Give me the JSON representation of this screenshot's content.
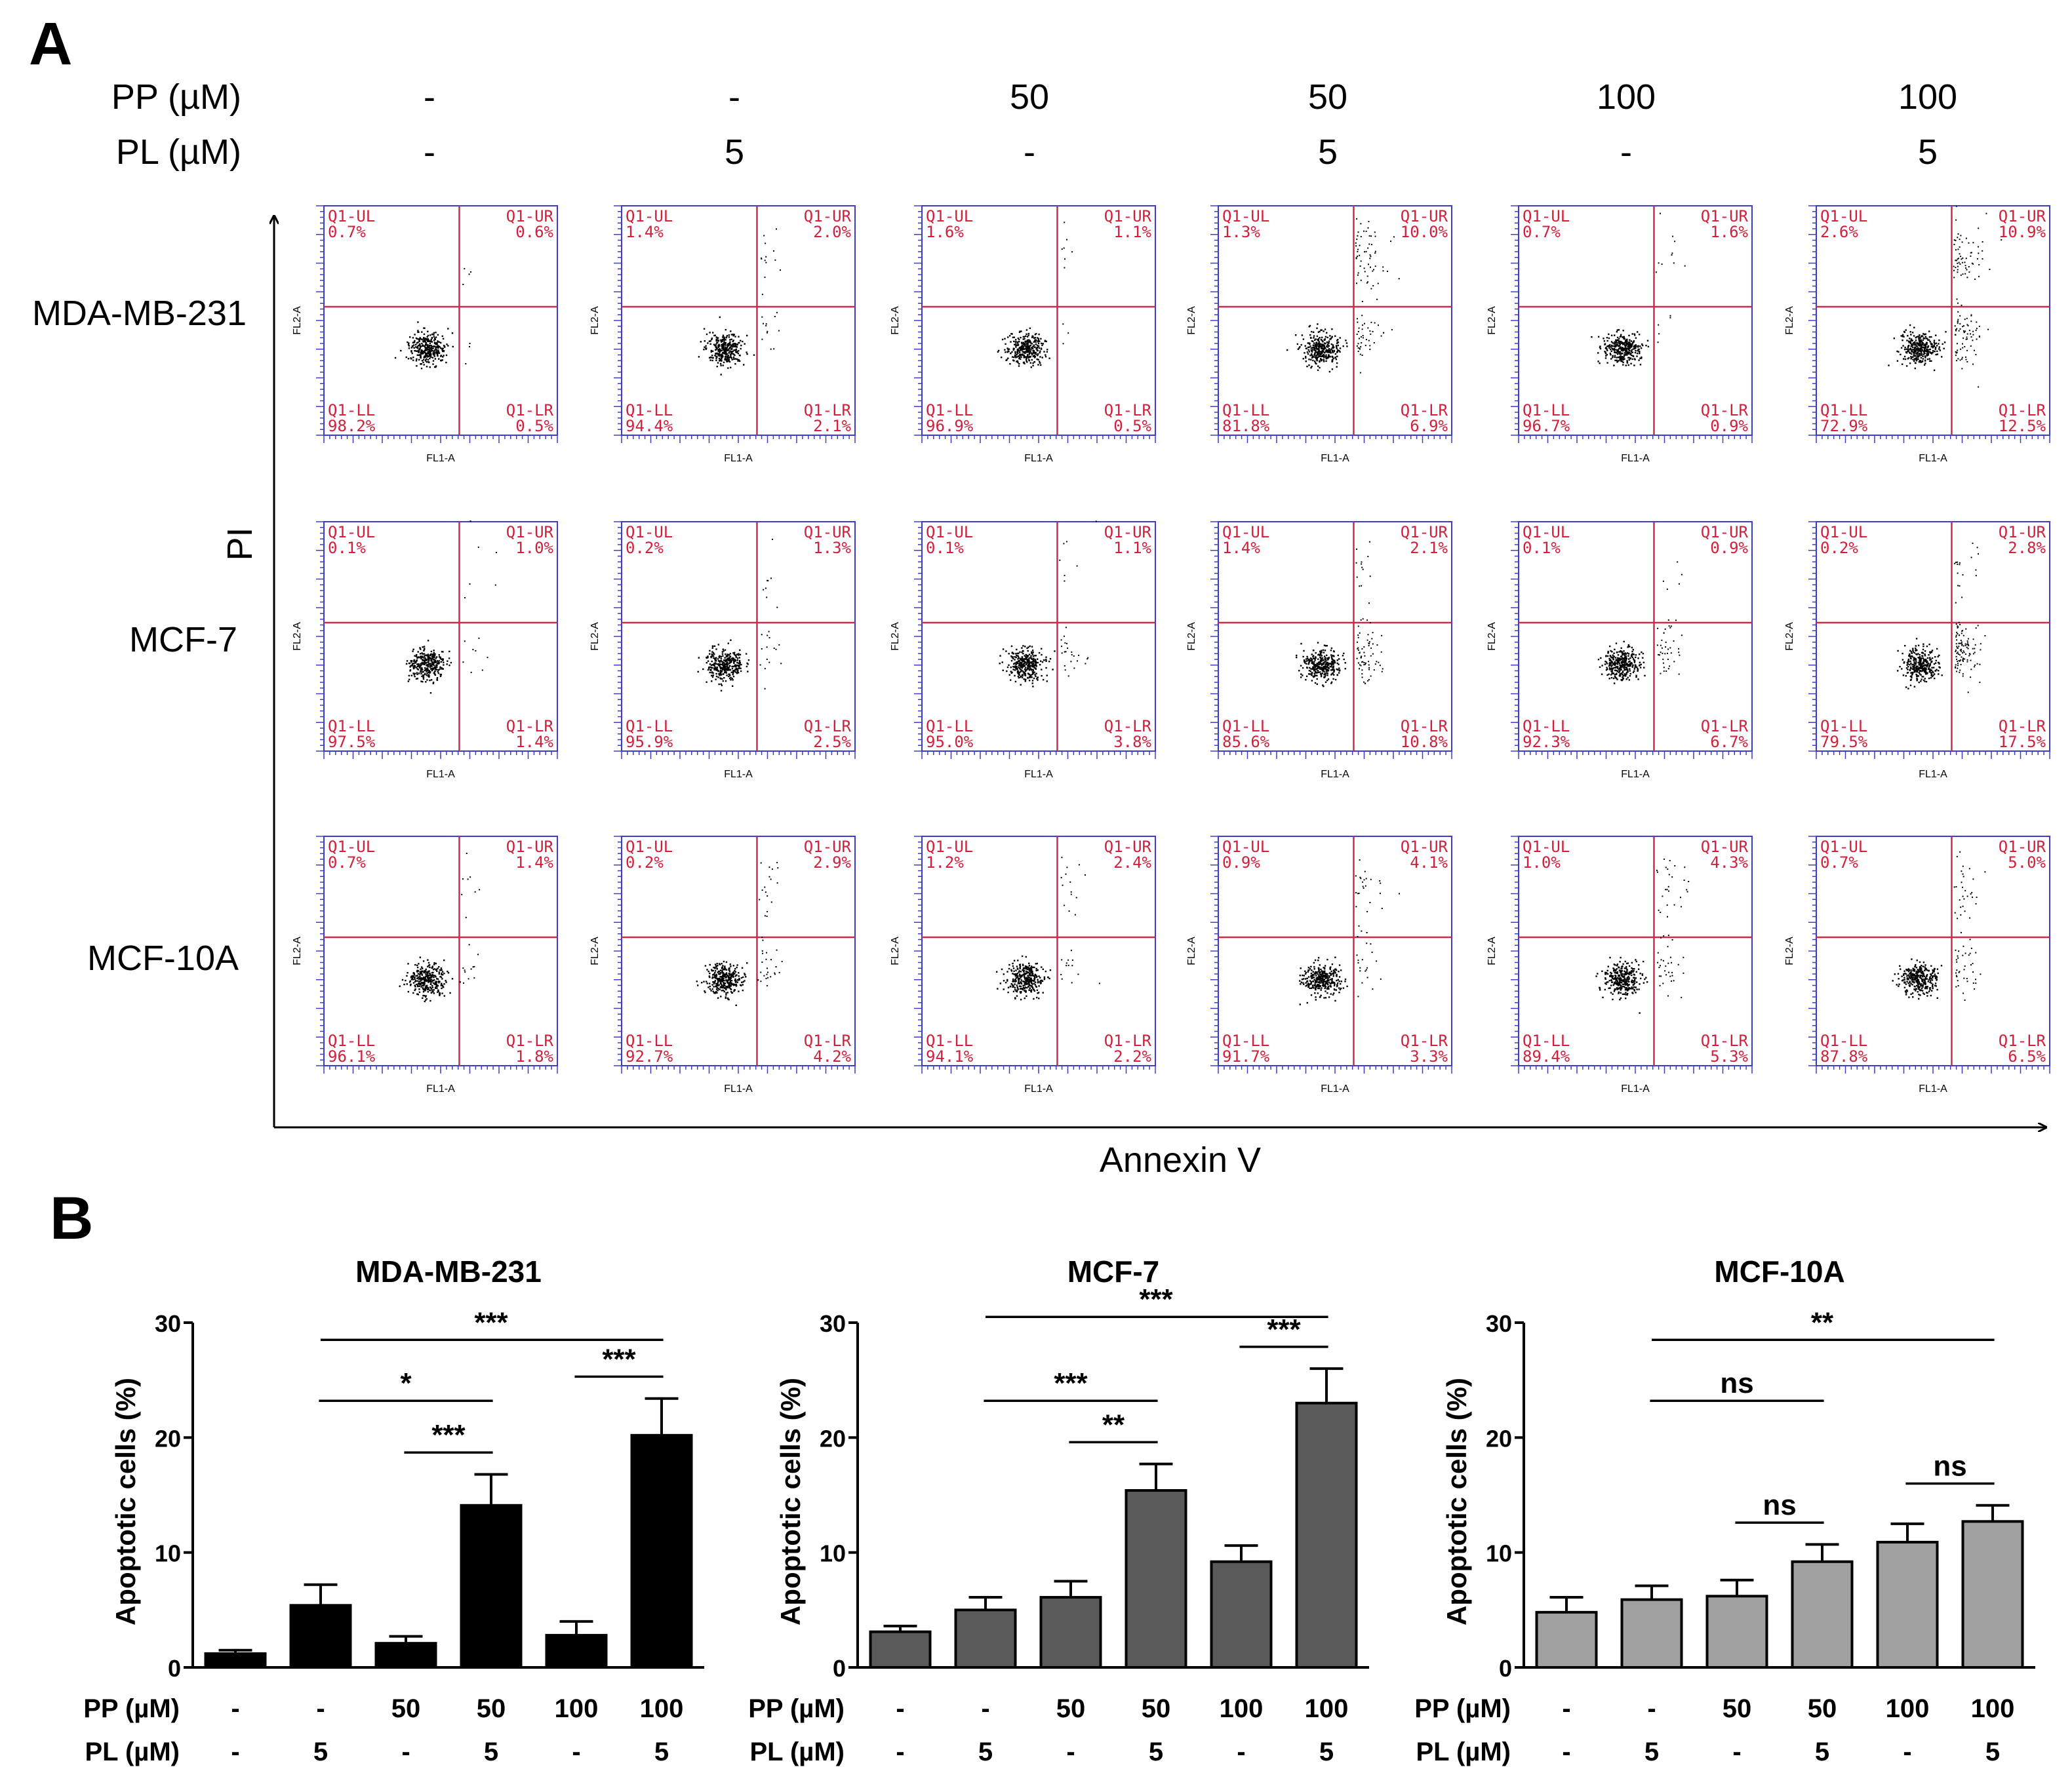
{
  "panel_a": {
    "letter": "A",
    "pp_label": "PP (µM)",
    "pl_label": "PL (µM)",
    "pp_values": [
      "-",
      "-",
      "50",
      "50",
      "100",
      "100"
    ],
    "pl_values": [
      "-",
      "5",
      "-",
      "5",
      "-",
      "5"
    ],
    "y_axis_label": "PI",
    "x_axis_label": "Annexin V",
    "plot_x_label": "FL1-A",
    "plot_y_label": "FL2-A",
    "quadrant_names": [
      "Q1-UL",
      "Q1-UR",
      "Q1-LL",
      "Q1-LR"
    ],
    "rows": [
      {
        "cell_line": "MDA-MB-231",
        "plots": [
          {
            "ul": "0.7%",
            "ur": "0.6%",
            "ll": "98.2%",
            "lr": "0.5%"
          },
          {
            "ul": "1.4%",
            "ur": "2.0%",
            "ll": "94.4%",
            "lr": "2.1%"
          },
          {
            "ul": "1.6%",
            "ur": "1.1%",
            "ll": "96.9%",
            "lr": "0.5%"
          },
          {
            "ul": "1.3%",
            "ur": "10.0%",
            "ll": "81.8%",
            "lr": "6.9%"
          },
          {
            "ul": "0.7%",
            "ur": "1.6%",
            "ll": "96.7%",
            "lr": "0.9%"
          },
          {
            "ul": "2.6%",
            "ur": "10.9%",
            "ll": "72.9%",
            "lr": "12.5%"
          }
        ]
      },
      {
        "cell_line": "MCF-7",
        "plots": [
          {
            "ul": "0.1%",
            "ur": "1.0%",
            "ll": "97.5%",
            "lr": "1.4%"
          },
          {
            "ul": "0.2%",
            "ur": "1.3%",
            "ll": "95.9%",
            "lr": "2.5%"
          },
          {
            "ul": "0.1%",
            "ur": "1.1%",
            "ll": "95.0%",
            "lr": "3.8%"
          },
          {
            "ul": "1.4%",
            "ur": "2.1%",
            "ll": "85.6%",
            "lr": "10.8%"
          },
          {
            "ul": "0.1%",
            "ur": "0.9%",
            "ll": "92.3%",
            "lr": "6.7%"
          },
          {
            "ul": "0.2%",
            "ur": "2.8%",
            "ll": "79.5%",
            "lr": "17.5%"
          }
        ]
      },
      {
        "cell_line": "MCF-10A",
        "plots": [
          {
            "ul": "0.7%",
            "ur": "1.4%",
            "ll": "96.1%",
            "lr": "1.8%"
          },
          {
            "ul": "0.2%",
            "ur": "2.9%",
            "ll": "92.7%",
            "lr": "4.2%"
          },
          {
            "ul": "1.2%",
            "ur": "2.4%",
            "ll": "94.1%",
            "lr": "2.2%"
          },
          {
            "ul": "0.9%",
            "ur": "4.1%",
            "ll": "91.7%",
            "lr": "3.3%"
          },
          {
            "ul": "1.0%",
            "ur": "4.3%",
            "ll": "89.4%",
            "lr": "5.3%"
          },
          {
            "ul": "0.7%",
            "ur": "5.0%",
            "ll": "87.8%",
            "lr": "6.5%"
          }
        ]
      }
    ]
  },
  "panel_b": {
    "letter": "B"
  },
  "chart_data": [
    {
      "type": "bar",
      "title": "MDA-MB-231",
      "ylabel": "Apoptotic cells (%)",
      "xlabel": "",
      "ylim": [
        0,
        30
      ],
      "yticks": [
        0,
        10,
        20,
        30
      ],
      "bar_color": "#000000",
      "row_labels": [
        "PP (µM)",
        "PL (µM)"
      ],
      "categories_pp": [
        "-",
        "-",
        "50",
        "50",
        "100",
        "100"
      ],
      "categories_pl": [
        "-",
        "5",
        "-",
        "5",
        "-",
        "5"
      ],
      "values": [
        1.2,
        5.4,
        2.1,
        14.1,
        2.8,
        20.2
      ],
      "errors": [
        0.3,
        1.8,
        0.6,
        2.7,
        1.2,
        3.2
      ],
      "significance": [
        {
          "from": 1,
          "to": 5,
          "label": "***"
        },
        {
          "from": 1,
          "to": 3,
          "label": "*"
        },
        {
          "from": 2,
          "to": 3,
          "label": "***"
        },
        {
          "from": 4,
          "to": 5,
          "label": "***"
        }
      ]
    },
    {
      "type": "bar",
      "title": "MCF-7",
      "ylabel": "Apoptotic cells (%)",
      "xlabel": "",
      "ylim": [
        0,
        30
      ],
      "yticks": [
        0,
        10,
        20,
        30
      ],
      "bar_color": "#5a5a5a",
      "row_labels": [
        "PP (µM)",
        "PL (µM)"
      ],
      "categories_pp": [
        "-",
        "-",
        "50",
        "50",
        "100",
        "100"
      ],
      "categories_pl": [
        "-",
        "5",
        "-",
        "5",
        "-",
        "5"
      ],
      "values": [
        3.1,
        5.0,
        6.1,
        15.4,
        9.2,
        23.0
      ],
      "errors": [
        0.5,
        1.1,
        1.4,
        2.3,
        1.4,
        3.0
      ],
      "significance": [
        {
          "from": 1,
          "to": 5,
          "label": "***"
        },
        {
          "from": 1,
          "to": 3,
          "label": "***"
        },
        {
          "from": 2,
          "to": 3,
          "label": "**"
        },
        {
          "from": 4,
          "to": 5,
          "label": "***"
        }
      ]
    },
    {
      "type": "bar",
      "title": "MCF-10A",
      "ylabel": "Apoptotic cells (%)",
      "xlabel": "",
      "ylim": [
        0,
        30
      ],
      "yticks": [
        0,
        10,
        20,
        30
      ],
      "bar_color": "#a0a0a0",
      "row_labels": [
        "PP (µM)",
        "PL (µM)"
      ],
      "categories_pp": [
        "-",
        "-",
        "50",
        "50",
        "100",
        "100"
      ],
      "categories_pl": [
        "-",
        "5",
        "-",
        "5",
        "-",
        "5"
      ],
      "values": [
        4.8,
        5.9,
        6.2,
        9.2,
        10.9,
        12.7
      ],
      "errors": [
        1.3,
        1.2,
        1.4,
        1.5,
        1.6,
        1.4
      ],
      "significance": [
        {
          "from": 1,
          "to": 5,
          "label": "**"
        },
        {
          "from": 1,
          "to": 3,
          "label": "ns"
        },
        {
          "from": 2,
          "to": 3,
          "label": "ns"
        },
        {
          "from": 4,
          "to": 5,
          "label": "ns"
        }
      ]
    }
  ]
}
